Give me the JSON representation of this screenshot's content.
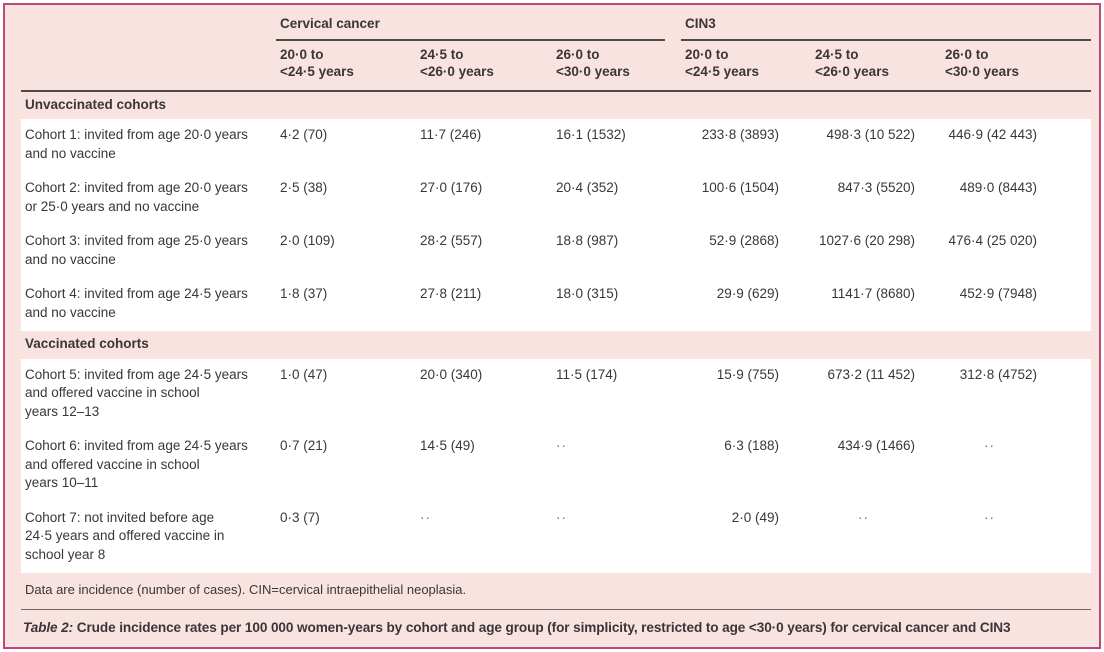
{
  "table": {
    "groups": [
      {
        "label": "Cervical cancer"
      },
      {
        "label": "CIN3"
      }
    ],
    "sub_headers": [
      {
        "line1": "20·0 to",
        "line2": "<24·5 years"
      },
      {
        "line1": "24·5 to",
        "line2": "<26·0 years"
      },
      {
        "line1": "26·0 to",
        "line2": "<30·0 years"
      },
      {
        "line1": "20·0 to",
        "line2": "<24·5 years"
      },
      {
        "line1": "24·5 to",
        "line2": "<26·0 years"
      },
      {
        "line1": "26·0 to",
        "line2": "<30·0 years"
      }
    ],
    "sections": [
      {
        "label": "Unvaccinated cohorts",
        "rows": [
          {
            "label": "Cohort 1: invited from age 20·0 years\nand no vaccine",
            "values": [
              "4·2 (70)",
              "11·7 (246)",
              "16·1 (1532)",
              "233·8 (3893)",
              "498·3 (10 522)",
              "446·9 (42 443)"
            ]
          },
          {
            "label": "Cohort 2: invited from age 20·0 years\nor 25·0 years and no vaccine",
            "values": [
              "2·5 (38)",
              "27·0 (176)",
              "20·4 (352)",
              "100·6 (1504)",
              "847·3 (5520)",
              "489·0 (8443)"
            ]
          },
          {
            "label": "Cohort 3: invited from age 25·0 years\nand no vaccine",
            "values": [
              "2·0 (109)",
              "28·2 (557)",
              "18·8 (987)",
              "52·9 (2868)",
              "1027·6 (20 298)",
              "476·4 (25 020)"
            ]
          },
          {
            "label": "Cohort 4: invited from age 24·5 years\nand no vaccine",
            "values": [
              "1·8 (37)",
              "27·8 (211)",
              "18·0 (315)",
              "29·9 (629)",
              "1141·7 (8680)",
              "452·9 (7948)"
            ]
          }
        ]
      },
      {
        "label": "Vaccinated cohorts",
        "rows": [
          {
            "label": "Cohort 5: invited from age 24·5 years\nand offered vaccine in school\nyears 12–13",
            "values": [
              "1·0 (47)",
              "20·0 (340)",
              "11·5 (174)",
              "15·9 (755)",
              "673·2 (11 452)",
              "312·8 (4752)"
            ]
          },
          {
            "label": "Cohort 6: invited from age 24·5 years\nand offered vaccine in school\nyears 10–11",
            "values": [
              "0·7 (21)",
              "14·5 (49)",
              "··",
              "6·3 (188)",
              "434·9 (1466)",
              "··"
            ]
          },
          {
            "label": "Cohort 7: not invited before age\n24·5 years and offered vaccine in\nschool year 8",
            "values": [
              "0·3 (7)",
              "··",
              "··",
              "2·0 (49)",
              "··",
              "··"
            ]
          }
        ]
      }
    ],
    "footnote": "Data are incidence (number of cases). CIN=cervical intraepithelial neoplasia.",
    "caption": {
      "prefix": "Table 2:",
      "text": "Crude incidence rates per 100 000 women-years by cohort and age group (for simplicity, restricted to age <30·0 years) for cervical cancer and CIN3"
    },
    "colors": {
      "frame_border": "#bf4a71",
      "background_pink": "#f8e3e0",
      "row_white": "#ffffff",
      "rule_dark": "#4f4a48",
      "text": "#3a3637"
    }
  }
}
